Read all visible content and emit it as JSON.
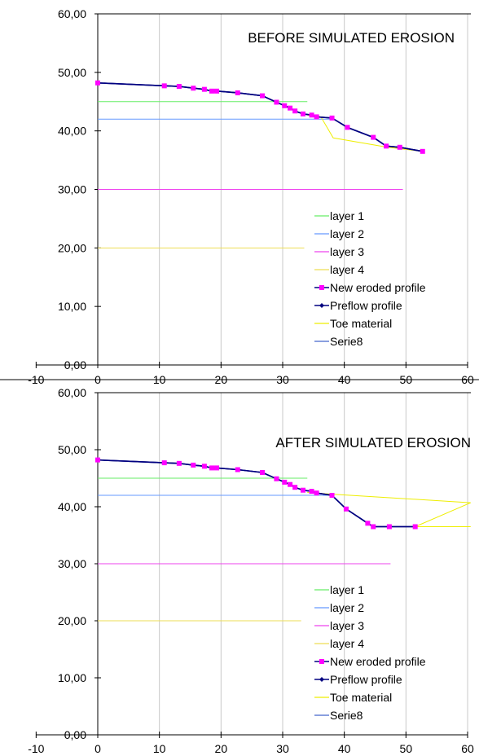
{
  "chart_data": [
    {
      "type": "line",
      "title": "BEFORE SIMULATED EROSION",
      "xlabel": "",
      "ylabel": "",
      "xlim": [
        -10,
        60
      ],
      "ylim": [
        0,
        60
      ],
      "x_ticks": [
        "-10",
        "0",
        "10",
        "20",
        "30",
        "40",
        "50",
        "60"
      ],
      "y_ticks": [
        "0,00",
        "10,00",
        "20,00",
        "30,00",
        "40,00",
        "50,00",
        "60,00"
      ],
      "grid": "vertical",
      "legend_position": "bottom-right",
      "series": [
        {
          "name": "layer 1",
          "color": "#66ee66",
          "marker": "none",
          "points": [
            [
              0,
              45
            ],
            [
              34,
              45
            ]
          ]
        },
        {
          "name": "layer 2",
          "color": "#6699ff",
          "marker": "none",
          "points": [
            [
              0,
              42
            ],
            [
              38,
              42
            ]
          ]
        },
        {
          "name": "layer 3",
          "color": "#ee44ee",
          "marker": "none",
          "points": [
            [
              0,
              30
            ],
            [
              49.5,
              30
            ]
          ]
        },
        {
          "name": "layer 4",
          "color": "#eedd55",
          "marker": "none",
          "points": [
            [
              0,
              20
            ],
            [
              33.5,
              20
            ]
          ]
        },
        {
          "name": "New eroded profile",
          "color": "#ff00ff",
          "marker": "square",
          "points": [
            [
              0,
              48.2
            ],
            [
              10.8,
              47.7
            ],
            [
              13.2,
              47.6
            ],
            [
              15.5,
              47.3
            ],
            [
              17.3,
              47.1
            ],
            [
              18.5,
              46.8
            ],
            [
              19.3,
              46.8
            ],
            [
              22.7,
              46.5
            ],
            [
              26.7,
              46.0
            ],
            [
              29.0,
              44.9
            ],
            [
              30.3,
              44.3
            ],
            [
              31.2,
              43.9
            ],
            [
              32.0,
              43.4
            ],
            [
              33.3,
              42.9
            ],
            [
              34.7,
              42.7
            ],
            [
              35.5,
              42.4
            ],
            [
              38.0,
              42.2
            ],
            [
              40.5,
              40.6
            ],
            [
              44.7,
              38.9
            ],
            [
              46.8,
              37.4
            ],
            [
              49.0,
              37.2
            ],
            [
              52.7,
              36.5
            ]
          ]
        },
        {
          "name": "Preflow profile",
          "color": "#000080",
          "marker": "diamond",
          "points": [
            [
              0,
              48.2
            ],
            [
              10.8,
              47.7
            ],
            [
              13.2,
              47.6
            ],
            [
              15.5,
              47.3
            ],
            [
              17.3,
              47.1
            ],
            [
              18.5,
              46.8
            ],
            [
              19.3,
              46.8
            ],
            [
              22.7,
              46.5
            ],
            [
              26.7,
              46.0
            ],
            [
              29.0,
              44.9
            ],
            [
              30.3,
              44.3
            ],
            [
              31.2,
              43.9
            ],
            [
              32.0,
              43.4
            ],
            [
              33.3,
              42.9
            ],
            [
              34.7,
              42.7
            ],
            [
              35.5,
              42.4
            ],
            [
              38.0,
              42.2
            ],
            [
              40.5,
              40.6
            ],
            [
              44.7,
              38.9
            ],
            [
              46.8,
              37.4
            ],
            [
              49.0,
              37.2
            ],
            [
              52.7,
              36.5
            ]
          ]
        },
        {
          "name": "Toe material",
          "color": "#eeee00",
          "marker": "none",
          "points": [
            [
              34,
              42.7
            ],
            [
              36.2,
              42.4
            ],
            [
              38.2,
              38.8
            ],
            [
              47,
              37.2
            ],
            [
              52.7,
              36.5
            ]
          ]
        },
        {
          "name": "Serie8",
          "color": "#4466cc",
          "marker": "none",
          "points": [
            [
              37.5,
              42.2
            ],
            [
              37.5,
              42.2
            ]
          ]
        }
      ]
    },
    {
      "type": "line",
      "title": "AFTER SIMULATED EROSION",
      "xlabel": "",
      "ylabel": "",
      "xlim": [
        -10,
        60
      ],
      "ylim": [
        0,
        60
      ],
      "x_ticks": [
        "-10",
        "0",
        "10",
        "20",
        "30",
        "40",
        "50",
        "60"
      ],
      "y_ticks": [
        "0,00",
        "10,00",
        "20,00",
        "30,00",
        "40,00",
        "50,00",
        "60,00"
      ],
      "grid": "vertical",
      "legend_position": "bottom-right",
      "series": [
        {
          "name": "layer 1",
          "color": "#66ee66",
          "marker": "none",
          "points": [
            [
              0,
              45
            ],
            [
              34,
              45
            ]
          ]
        },
        {
          "name": "layer 2",
          "color": "#6699ff",
          "marker": "none",
          "points": [
            [
              0,
              42
            ],
            [
              38,
              42
            ]
          ]
        },
        {
          "name": "layer 3",
          "color": "#ee44ee",
          "marker": "none",
          "points": [
            [
              0,
              30
            ],
            [
              47.5,
              30
            ]
          ]
        },
        {
          "name": "layer 4",
          "color": "#eedd55",
          "marker": "none",
          "points": [
            [
              0,
              20
            ],
            [
              33,
              20
            ]
          ]
        },
        {
          "name": "New eroded profile",
          "color": "#ff00ff",
          "marker": "square",
          "points": [
            [
              0,
              48.2
            ],
            [
              10.8,
              47.7
            ],
            [
              13.2,
              47.6
            ],
            [
              15.5,
              47.3
            ],
            [
              17.3,
              47.1
            ],
            [
              18.5,
              46.8
            ],
            [
              19.3,
              46.8
            ],
            [
              22.7,
              46.5
            ],
            [
              26.7,
              46.0
            ],
            [
              29.0,
              44.9
            ],
            [
              30.3,
              44.3
            ],
            [
              31.2,
              43.9
            ],
            [
              32.0,
              43.4
            ],
            [
              33.3,
              42.9
            ],
            [
              34.7,
              42.7
            ],
            [
              35.5,
              42.4
            ],
            [
              38.0,
              42.0
            ],
            [
              40.3,
              39.6
            ],
            [
              43.8,
              37.1
            ],
            [
              44.7,
              36.5
            ],
            [
              47.3,
              36.5
            ],
            [
              51.5,
              36.5
            ]
          ]
        },
        {
          "name": "Preflow profile",
          "color": "#000080",
          "marker": "diamond",
          "points": [
            [
              0,
              48.2
            ],
            [
              10.8,
              47.7
            ],
            [
              13.2,
              47.6
            ],
            [
              15.5,
              47.3
            ],
            [
              17.3,
              47.1
            ],
            [
              18.5,
              46.8
            ],
            [
              19.3,
              46.8
            ],
            [
              22.7,
              46.5
            ],
            [
              26.7,
              46.0
            ],
            [
              29.0,
              44.9
            ],
            [
              30.3,
              44.3
            ],
            [
              31.2,
              43.9
            ],
            [
              32.0,
              43.4
            ],
            [
              33.3,
              42.9
            ],
            [
              34.7,
              42.7
            ],
            [
              35.5,
              42.4
            ],
            [
              38.0,
              42.0
            ],
            [
              40.3,
              39.6
            ],
            [
              43.8,
              37.1
            ],
            [
              44.7,
              36.5
            ],
            [
              47.3,
              36.5
            ],
            [
              51.5,
              36.5
            ]
          ]
        },
        {
          "name": "Toe material",
          "color": "#eeee00",
          "marker": "none",
          "points": [
            [
              34,
              42.5
            ],
            [
              38,
              42.2
            ],
            [
              60.5,
              40.7
            ],
            [
              51.5,
              36.5
            ],
            [
              60.5,
              36.5
            ]
          ]
        },
        {
          "name": "Serie8",
          "color": "#4466cc",
          "marker": "none",
          "points": [
            [
              37.5,
              42.0
            ],
            [
              37.5,
              42.0
            ]
          ]
        }
      ]
    }
  ]
}
